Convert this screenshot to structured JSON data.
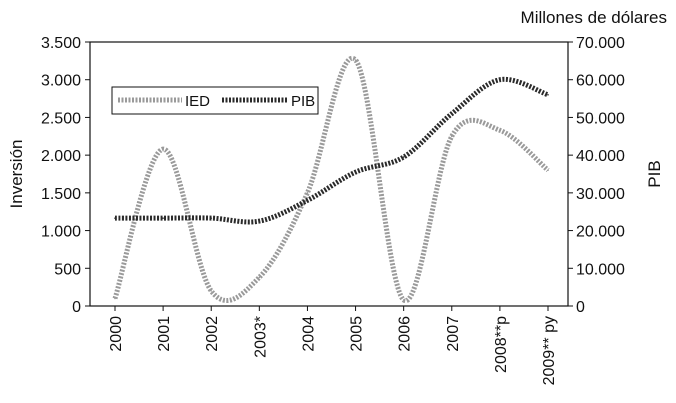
{
  "chart_data": {
    "type": "line",
    "unit_note": "Millones de dólares",
    "categories": [
      "2000",
      "2001",
      "2002",
      "2003*",
      "2004",
      "2005",
      "2006",
      "2007",
      "2008**p",
      "2009** py"
    ],
    "y_left": {
      "label": "Inversión",
      "ylim": [
        0,
        3500
      ],
      "ticks": [
        "0",
        "500",
        "1.000",
        "1.500",
        "2.000",
        "2.500",
        "3.000",
        "3.500"
      ],
      "tick_values": [
        0,
        500,
        1000,
        1500,
        2000,
        2500,
        3000,
        3500
      ]
    },
    "y_right": {
      "label": "PIB",
      "ylim": [
        0,
        70000
      ],
      "ticks": [
        "0",
        "10.000",
        "20.000",
        "30.000",
        "40.000",
        "50.000",
        "60.000",
        "70.000"
      ],
      "tick_values": [
        0,
        10000,
        20000,
        30000,
        40000,
        50000,
        60000,
        70000
      ]
    },
    "series": [
      {
        "name": "IED",
        "axis": "left",
        "color": "#9a9a9a",
        "values": [
          100,
          2080,
          200,
          380,
          1500,
          3260,
          80,
          2250,
          2330,
          1800
        ]
      },
      {
        "name": "PIB",
        "axis": "right",
        "color": "#2a2a2a",
        "values": [
          23300,
          23300,
          23300,
          22500,
          28000,
          35500,
          39500,
          51000,
          60000,
          56000
        ]
      }
    ],
    "legend": {
      "position": "top-left"
    },
    "grid": false
  }
}
